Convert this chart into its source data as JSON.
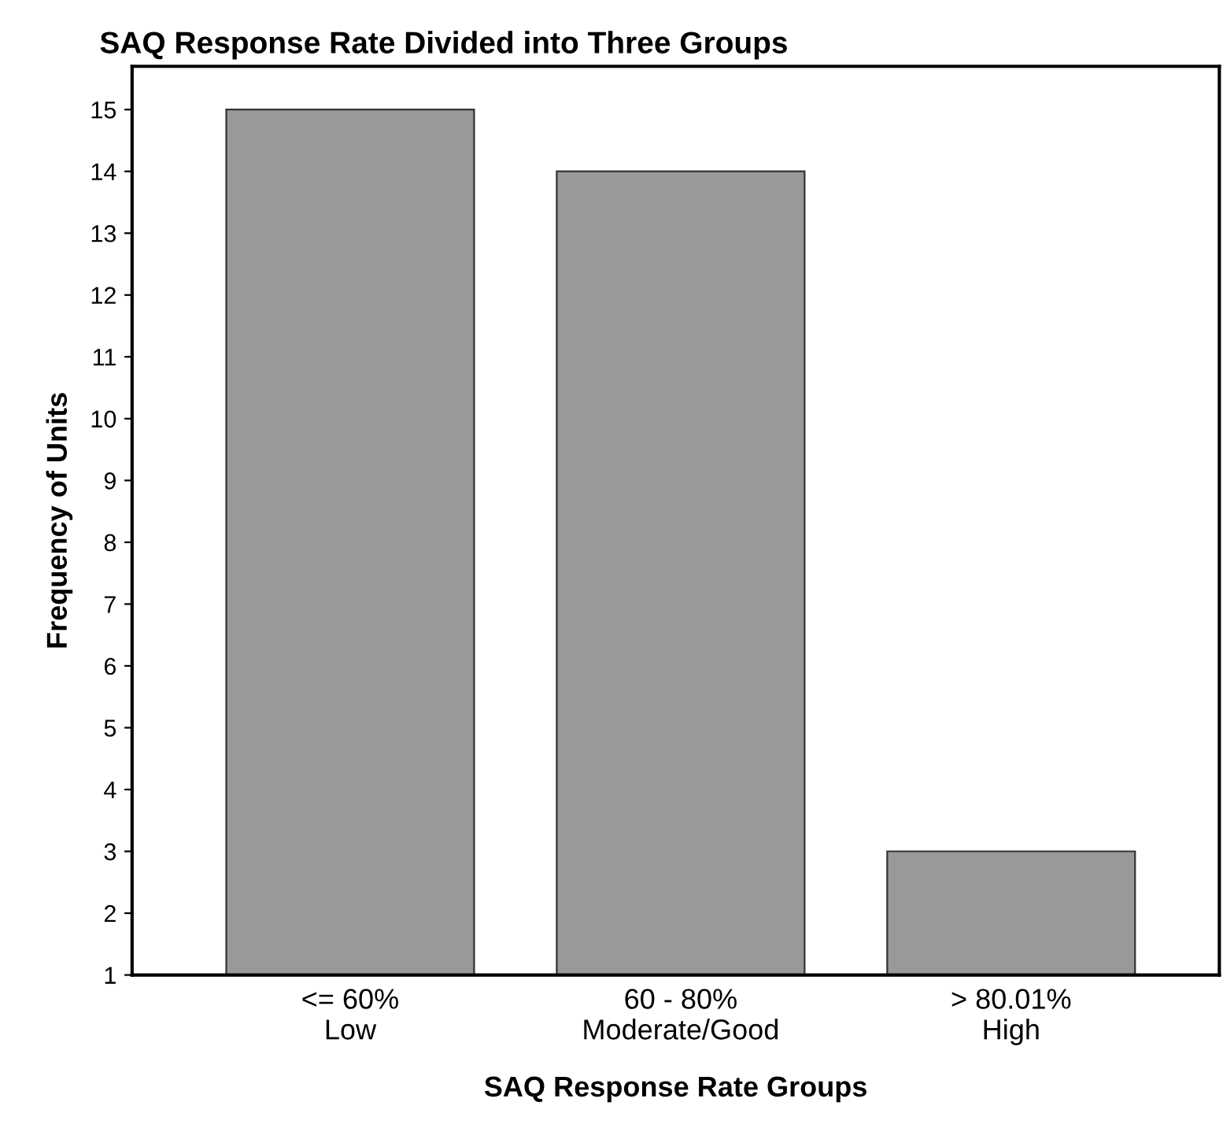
{
  "chart_data": {
    "type": "bar",
    "title": "SAQ Response Rate Divided into Three Groups",
    "xlabel": "SAQ Response Rate Groups",
    "ylabel": "Frequency of Units",
    "categories": [
      "<= 60%\nLow",
      "60 - 80%\nModerate/Good",
      "> 80.01%\nHigh"
    ],
    "values": [
      15,
      14,
      3
    ],
    "color": "#999999",
    "ylim": [
      1,
      15.7
    ],
    "yticks": [
      1,
      2,
      3,
      4,
      5,
      6,
      7,
      8,
      9,
      10,
      11,
      12,
      13,
      14,
      15
    ],
    "grid": false,
    "legend": false
  }
}
